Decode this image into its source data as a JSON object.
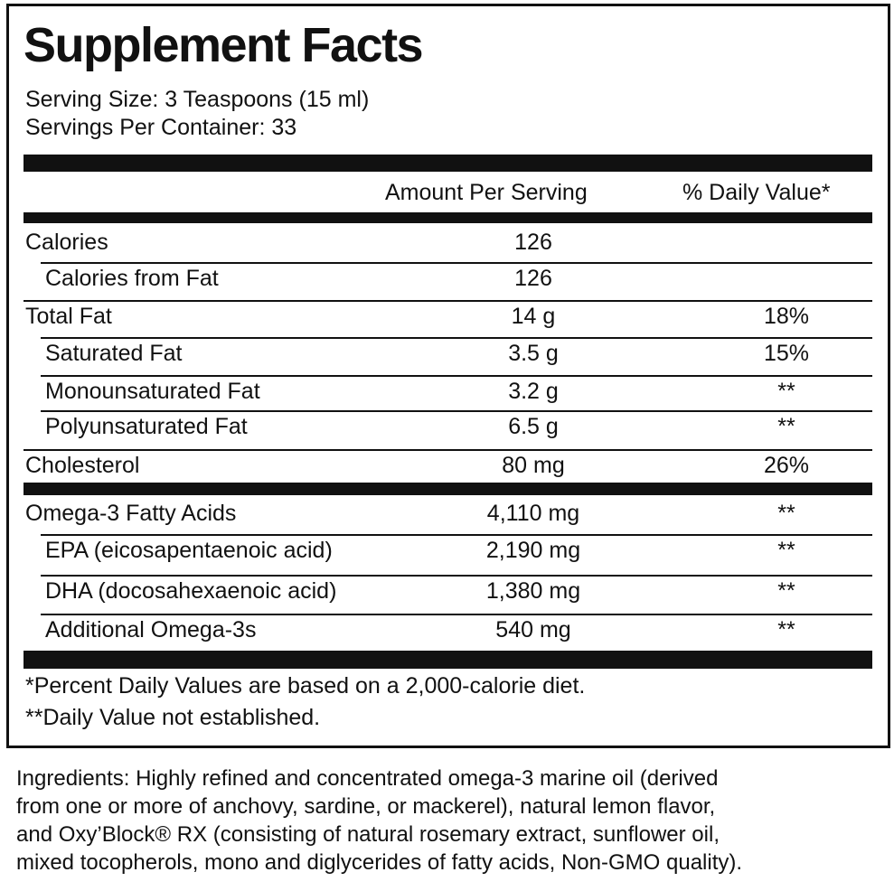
{
  "header": {
    "title": "Supplement Facts",
    "serving_size": "Serving Size: 3 Teaspoons (15 ml)",
    "servings_per_container": "Servings Per Container: 33"
  },
  "table": {
    "columns": [
      "Amount Per Serving",
      "% Daily Value*"
    ],
    "rows": [
      [
        "Calories",
        "126"
      ],
      [
        "Calories from Fat",
        "126"
      ],
      [
        "Total Fat",
        "14 g",
        "18%"
      ],
      [
        "Saturated Fat",
        "3.5 g",
        "15%"
      ],
      [
        "Monounsaturated Fat",
        "3.2 g",
        "**"
      ],
      [
        "Polyunsaturated Fat",
        "6.5 g",
        "**"
      ],
      [
        "Cholesterol",
        "80 mg",
        "26%"
      ],
      [
        "Omega-3 Fatty Acids",
        "4,110 mg",
        "**"
      ],
      [
        "EPA (eicosapentaenoic acid)",
        "2,190 mg",
        "**"
      ],
      [
        "DHA (docosahexaenoic acid)",
        "1,380 mg",
        "**"
      ],
      [
        "Additional Omega-3s",
        "540 mg",
        "**"
      ]
    ]
  },
  "footnotes": [
    "*Percent Daily Values are based on a 2,000-calorie diet.",
    "**Daily Value not established."
  ],
  "ingredients": [
    "Ingredients: Highly refined and concentrated omega-3 marine oil (derived",
    "from one or more of anchovy, sardine, or mackerel), natural lemon flavor,",
    "and Oxy’Block® RX (consisting of natural rosemary extract, sunflower oil,",
    "mixed tocopherols, mono and diglycerides of fatty acids, Non-GMO quality)."
  ]
}
